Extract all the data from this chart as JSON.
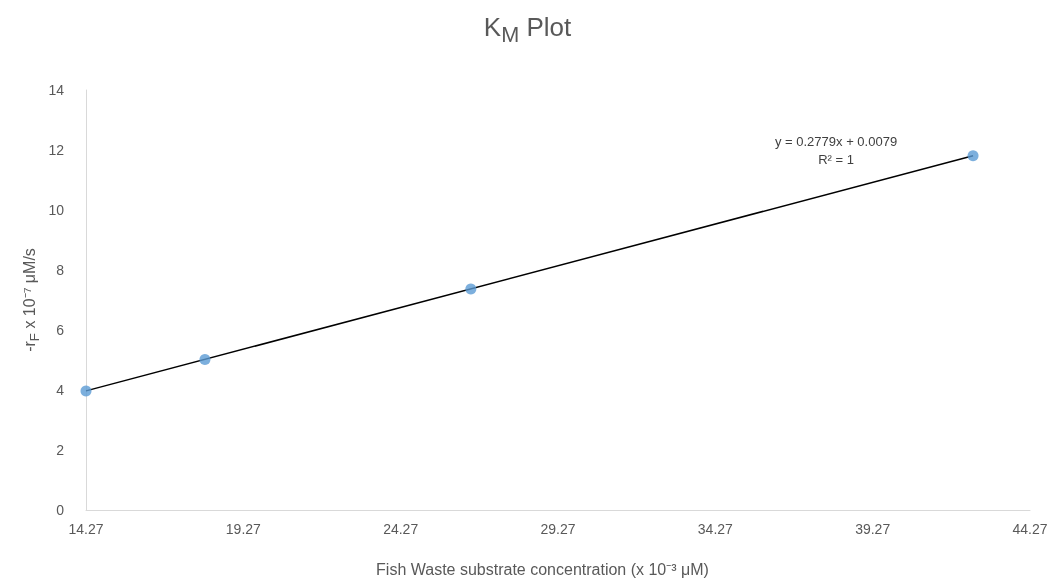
{
  "chart_data": {
    "type": "scatter",
    "title": "K$_{M}$ Plot",
    "xlabel": "Fish Waste substrate concentration (x 10⁻³ μM)",
    "ylabel": "-r$_{F}$ x 10⁻⁷ μM/s",
    "series": [
      {
        "color": "#5b9bd5",
        "x": [
          14.27,
          18.05,
          26.5,
          42.46
        ],
        "values": [
          3.97,
          5.02,
          7.37,
          11.81
        ],
        "marker": "circle"
      },
      {
        "type": "line",
        "color": "#000000",
        "x": [
          14.27,
          42.46
        ],
        "values": [
          3.97,
          11.81
        ],
        "marker": "none",
        "line_style": "solid"
      }
    ],
    "annotations": [
      "y = 0.2779x + 0.0079",
      "R² = 1"
    ],
    "xlim": [
      14.27,
      44.27
    ],
    "xticks": [
      14.27,
      19.27,
      24.27,
      29.27,
      34.27,
      39.27,
      44.27
    ],
    "ylim": [
      0,
      14
    ],
    "yticks": [
      0,
      2,
      4,
      6,
      8,
      10,
      12,
      14
    ],
    "grid": false
  }
}
